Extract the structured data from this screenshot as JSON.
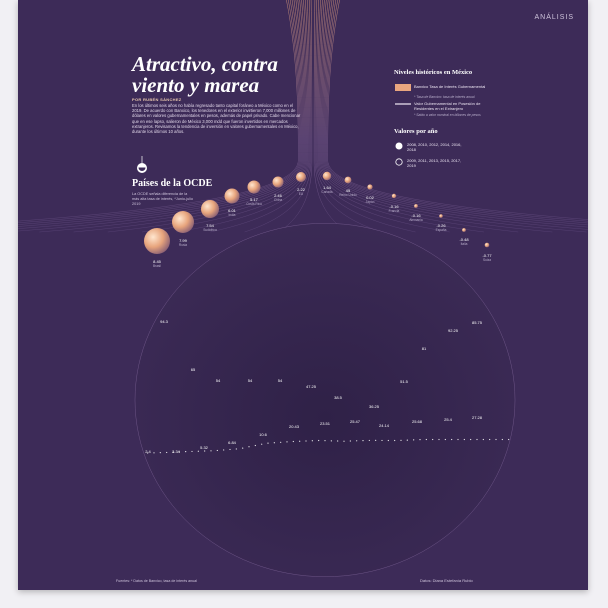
{
  "header": {
    "section": "ANÁLISIS"
  },
  "headline": "Atractivo, contra viento y marea",
  "byline": "POR RUBÉN SÁNCHEZ",
  "intro": "En los últimos seis años no había regresado tanto capital foráneo a México como en el 2019. De acuerdo con Banxico, los tenedores en el exterior invirtieron 7,000 millones de dólares en valores gubernamentales en pesos, además de papel privado. Cabe mencionar que en ese lapso, salieron de México 3,000 mdd que fueron invertidos en mercados extranjeros. Revisamos la tendencia de inversión en valores gubernamentales en México, durante los últimos 10 años.",
  "ocde": {
    "title": "Países de la OCDE",
    "text": "La OCDE señala diferencia de la más alta tasa de interés, *Junio-julio 2019",
    "icon": "drop-icon"
  },
  "legend": {
    "title": "Niveles históricos en México",
    "items": [
      {
        "label": "Banxico Tasa de Interés Gubernamental",
        "note": "* Tasa de Banxico: tasa de interés anual",
        "color": "#e9a67f"
      },
      {
        "label": "Valor Gubernamental en Posesión de Residentes en el Extranjero",
        "note": "* Saldo a valor nominal en billones de pesos",
        "color": "#f4ecf7"
      }
    ]
  },
  "years": {
    "title": "Valores por año",
    "groups": [
      {
        "label": "2008, 2010, 2012, 2014, 2016, 2018",
        "icon": "filled-circle-icon"
      },
      {
        "label": "2009, 2011, 2013, 2015, 2017, 2019",
        "icon": "outline-circle-icon"
      }
    ]
  },
  "countries": [
    {
      "value": "8.45",
      "label": "Brasil"
    },
    {
      "value": "7.99",
      "label": "Rusia"
    },
    {
      "value": "7.54",
      "label": "Sudáfrica"
    },
    {
      "value": "6.01",
      "label": "India"
    },
    {
      "value": "5.17",
      "label": "Costa Rica"
    },
    {
      "value": "2.46",
      "label": "China"
    },
    {
      "value": "2.22",
      "label": "EU"
    },
    {
      "value": "1.64",
      "label": "Canadá"
    },
    {
      "value": "45",
      "label": "Reino Unido"
    },
    {
      "value": "0.02",
      "label": "Japón"
    },
    {
      "value": "-0.16",
      "label": "Francia"
    },
    {
      "value": "-0.16",
      "label": "Alemania"
    },
    {
      "value": "-0.26",
      "label": "España"
    },
    {
      "value": "-0.48",
      "label": "Italia"
    },
    {
      "value": "-0.77",
      "label": "Suiza"
    }
  ],
  "chart_data": {
    "type": "area",
    "title": "",
    "series": [
      {
        "name": "Banxico Tasa de Interés Gubernamental",
        "labels": [
          {
            "value": "94.3"
          },
          {
            "value": "65"
          },
          {
            "value": "54"
          },
          {
            "value": "54"
          },
          {
            "value": "54"
          },
          {
            "value": "47.25"
          },
          {
            "value": "38.5"
          },
          {
            "value": "36.25"
          },
          {
            "value": "51.5"
          },
          {
            "value": "81"
          },
          {
            "value": "92.25"
          },
          {
            "value": "85.75"
          }
        ]
      },
      {
        "name": "Valor Gubernamental en Posesión de Residentes en el Extranjero",
        "labels": [
          {
            "value": "2.4"
          },
          {
            "value": "3.34"
          },
          {
            "value": "5.32"
          },
          {
            "value": "6.84"
          },
          {
            "value": "10.6"
          },
          {
            "value": "20.43"
          },
          {
            "value": "23.51"
          },
          {
            "value": "25.47"
          },
          {
            "value": "24.14"
          },
          {
            "value": "25.68"
          },
          {
            "value": "25.4"
          },
          {
            "value": "27.28"
          }
        ]
      }
    ],
    "profile_top": [
      94.3,
      94.3,
      94.3,
      94.3,
      94.3,
      65,
      54,
      54,
      54,
      54,
      54,
      54,
      47.25,
      47.25,
      47.25,
      38.5,
      38.5,
      36.25,
      36.25,
      36.25,
      36.25,
      36.25,
      51.5,
      51.5,
      81,
      81,
      92.25,
      92.25,
      85.75,
      85.75
    ],
    "profile_bottom": [
      2.4,
      2.8,
      3.34,
      4.3,
      5.32,
      6.1,
      6.84,
      8.7,
      10.6,
      15.5,
      20.43,
      22,
      23.51,
      24.5,
      25.47,
      24.8,
      24.14,
      25,
      25.68,
      25.5,
      25.4,
      26.3,
      27.28,
      27.28,
      27.28,
      27.28,
      27.28,
      27.28,
      27.28,
      27.28
    ]
  },
  "footer": {
    "source": "Fuentes: * Datos de Banxico, tasa de interés anual",
    "credit": "Datos: Diana Estefanía Rubio"
  }
}
